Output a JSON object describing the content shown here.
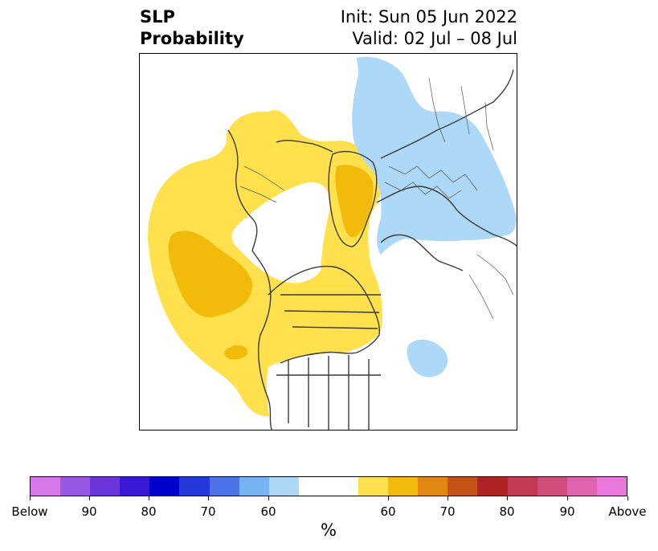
{
  "title": {
    "variable": "SLP",
    "product": "Probability",
    "init": "Init: Sun 05 Jun 2022",
    "valid": "Valid: 02 Jul – 08 Jul"
  },
  "colors": {
    "below_light": "#add8f7",
    "above_light": "#ffe04d",
    "above_medium": "#f2ba0a",
    "coast": "#3a3a3a"
  },
  "colorbar": {
    "unit": "%",
    "segments": [
      "#d677ea",
      "#9a57e3",
      "#6a36db",
      "#3b17d6",
      "#0000cc",
      "#2437db",
      "#4c73e8",
      "#76b3f2",
      "#add8f7",
      "#ffffff",
      "#ffffff",
      "#ffe04d",
      "#f2ba0a",
      "#df8711",
      "#c45318",
      "#af2324",
      "#c23a53",
      "#cf4e7c",
      "#dd63af",
      "#e978dd"
    ],
    "segment_weights": [
      1,
      1,
      1,
      1,
      1,
      1,
      1,
      1,
      1,
      1,
      1,
      1,
      1,
      1,
      1,
      1,
      1,
      1,
      1,
      1
    ],
    "ticks": [
      "Below",
      "90",
      "80",
      "70",
      "60",
      "60",
      "70",
      "80",
      "90",
      "Above"
    ]
  }
}
